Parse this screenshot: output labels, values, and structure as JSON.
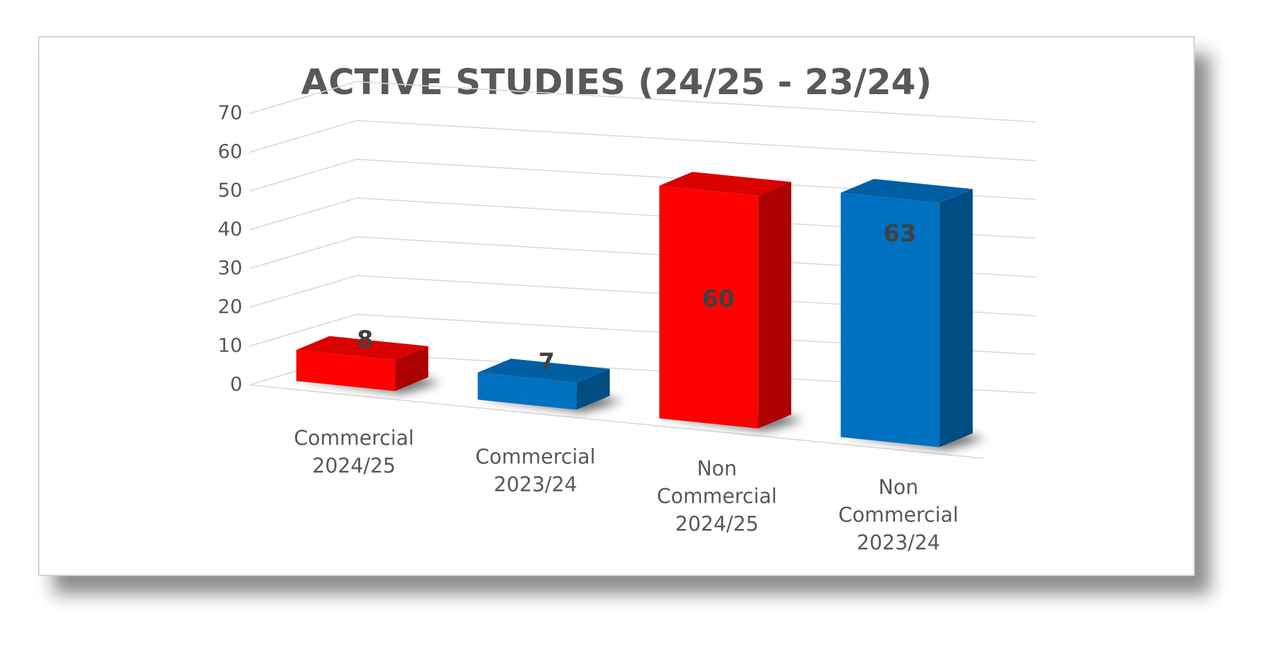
{
  "chart_data": {
    "type": "bar",
    "title": "ACTIVE STUDIES (24/25 - 23/24)",
    "categories": [
      [
        "Commercial",
        "2024/25"
      ],
      [
        "Commercial",
        "2023/24"
      ],
      [
        "Non",
        "Commercial",
        "2024/25"
      ],
      [
        "Non",
        "Commercial",
        "2023/24"
      ]
    ],
    "values": [
      8,
      7,
      60,
      63
    ],
    "data_labels": [
      "8",
      "7",
      "60",
      "63"
    ],
    "bar_colors": [
      "#ff0000",
      "#0070c0",
      "#ff0000",
      "#0070c0"
    ],
    "y_ticks": [
      "0",
      "10",
      "20",
      "30",
      "40",
      "50",
      "60",
      "70"
    ],
    "ylim": [
      0,
      70
    ],
    "grid": true,
    "legend": "none",
    "style": "3d-clustered-column"
  }
}
